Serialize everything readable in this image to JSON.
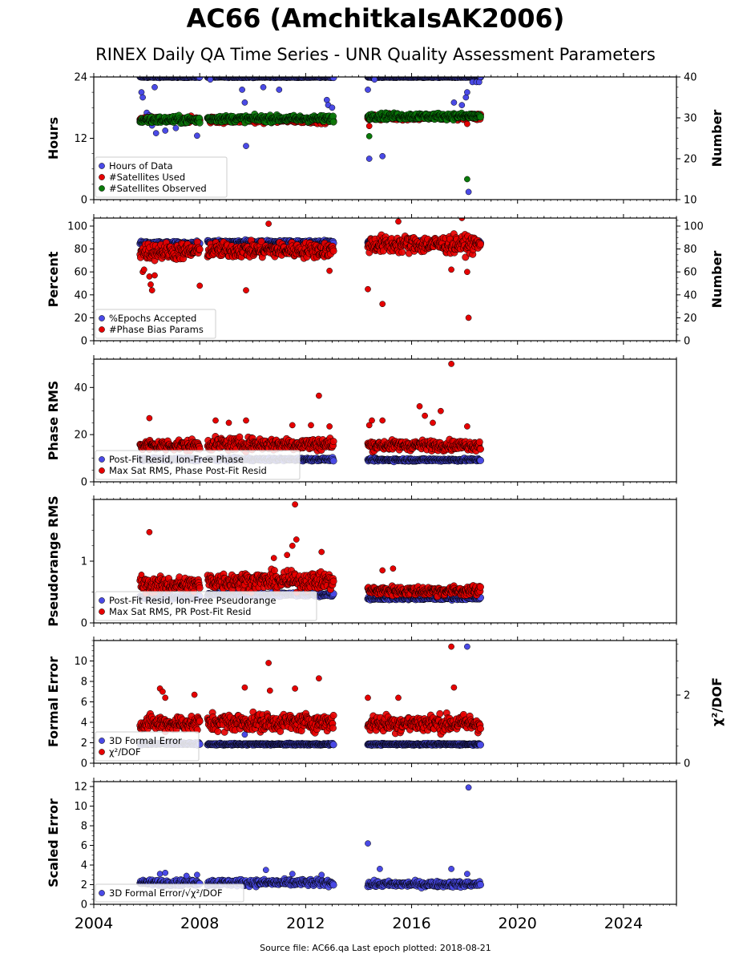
{
  "title": "AC66 (AmchitkaIsAK2006)",
  "subtitle": "RINEX Daily QA Time Series - UNR Quality Assessment Parameters",
  "footer": "Source file: AC66.qa Last epoch plotted: 2018-08-21",
  "colors": {
    "blue": "#4a4ae6",
    "red": "#e60000",
    "green": "#0a7a0a"
  },
  "chart_data": [
    {
      "type": "scatter",
      "ylabel": "Hours",
      "ylabel2": "Number",
      "xlim": [
        2004,
        2026
      ],
      "ylim": [
        0,
        24
      ],
      "ylim2": [
        10,
        40
      ],
      "yticks": [
        0,
        12,
        24
      ],
      "yticks2": [
        10,
        20,
        30,
        40
      ],
      "xticks": [
        "2004",
        "2008",
        "2012",
        "2016",
        "2020",
        "2024"
      ],
      "legend": [
        "Hours of Data",
        "#Satellites Used",
        "#Satellites Observed"
      ],
      "legend_position": "lower-left",
      "series": [
        {
          "name": "Hours of Data",
          "color": "blue",
          "axis": "left",
          "segments": [
            [
              2005.75,
              2008.0,
              24,
              0.1
            ],
            [
              2008.3,
              2013.05,
              24,
              0.1
            ],
            [
              2014.35,
              2018.6,
              24,
              0.1
            ]
          ],
          "outliers": [
            [
              2005.8,
              21
            ],
            [
              2005.85,
              20
            ],
            [
              2006.0,
              17
            ],
            [
              2006.1,
              16.5
            ],
            [
              2006.2,
              14.5
            ],
            [
              2006.3,
              22
            ],
            [
              2006.35,
              13
            ],
            [
              2006.7,
              13.5
            ],
            [
              2007.1,
              14
            ],
            [
              2007.9,
              12.5
            ],
            [
              2008.4,
              23.5
            ],
            [
              2009.6,
              21.5
            ],
            [
              2009.7,
              19
            ],
            [
              2009.75,
              10.5
            ],
            [
              2010.4,
              22
            ],
            [
              2011.0,
              21.5
            ],
            [
              2012.8,
              19.5
            ],
            [
              2012.85,
              18.5
            ],
            [
              2013.0,
              18
            ],
            [
              2014.35,
              21.5
            ],
            [
              2014.4,
              8
            ],
            [
              2014.6,
              23.5
            ],
            [
              2014.9,
              8.5
            ],
            [
              2017.6,
              19
            ],
            [
              2017.9,
              18.5
            ],
            [
              2018.05,
              20
            ],
            [
              2018.1,
              21
            ],
            [
              2018.15,
              1.5
            ],
            [
              2018.3,
              23
            ],
            [
              2018.45,
              23
            ],
            [
              2018.55,
              23
            ],
            [
              2018.6,
              24
            ]
          ]
        },
        {
          "name": "#Satellites Used",
          "color": "red",
          "axis": "right",
          "segments": [
            [
              2005.75,
              2008.0,
              29.5,
              0.8
            ],
            [
              2008.3,
              2013.05,
              29.5,
              0.8
            ],
            [
              2014.35,
              2018.6,
              30.2,
              0.8
            ]
          ],
          "outliers": [
            [
              2014.4,
              28
            ],
            [
              2018.1,
              28.5
            ]
          ]
        },
        {
          "name": "#Satellites Observed",
          "color": "green",
          "axis": "right",
          "segments": [
            [
              2005.75,
              2008.0,
              29.5,
              0.9
            ],
            [
              2008.3,
              2013.05,
              29.8,
              0.8
            ],
            [
              2014.35,
              2018.6,
              30.4,
              0.8
            ]
          ],
          "outliers": [
            [
              2014.4,
              25.5
            ],
            [
              2018.1,
              15
            ]
          ]
        }
      ]
    },
    {
      "type": "scatter",
      "ylabel": "Percent",
      "ylabel2": "Number",
      "xlim": [
        2004,
        2026
      ],
      "ylim": [
        0,
        107
      ],
      "ylim2": [
        0,
        107
      ],
      "yticks": [
        0,
        20,
        40,
        60,
        80,
        100
      ],
      "yticks2": [
        0,
        20,
        40,
        60,
        80,
        100
      ],
      "xticks": [
        "2004",
        "2008",
        "2012",
        "2016",
        "2020",
        "2024"
      ],
      "legend": [
        "%Epochs Accepted",
        "#Phase Bias Params"
      ],
      "legend_position": "lower-left",
      "series": [
        {
          "name": "%Epochs Accepted",
          "color": "blue",
          "axis": "left",
          "segments": [
            [
              2005.75,
              2008.0,
              85,
              1.5
            ],
            [
              2008.3,
              2013.05,
              86,
              1.5
            ],
            [
              2014.35,
              2018.6,
              86,
              1.5
            ]
          ],
          "outliers": []
        },
        {
          "name": "#Phase Bias Params",
          "color": "red",
          "axis": "right",
          "segments": [
            [
              2005.75,
              2008.0,
              78,
              8
            ],
            [
              2008.3,
              2013.05,
              79,
              7
            ],
            [
              2014.35,
              2018.6,
              84,
              8
            ]
          ],
          "outliers": [
            [
              2005.85,
              60
            ],
            [
              2005.9,
              62
            ],
            [
              2006.1,
              56
            ],
            [
              2006.15,
              49
            ],
            [
              2006.2,
              44
            ],
            [
              2006.3,
              57
            ],
            [
              2008.0,
              48
            ],
            [
              2009.75,
              44
            ],
            [
              2010.6,
              102
            ],
            [
              2012.9,
              61
            ],
            [
              2014.35,
              45
            ],
            [
              2014.9,
              32
            ],
            [
              2015.5,
              104
            ],
            [
              2017.5,
              62
            ],
            [
              2017.9,
              107
            ],
            [
              2018.1,
              60
            ],
            [
              2018.15,
              20
            ]
          ]
        }
      ]
    },
    {
      "type": "scatter",
      "ylabel": "Phase RMS",
      "xlim": [
        2004,
        2026
      ],
      "ylim": [
        0,
        52
      ],
      "yticks": [
        0,
        20,
        40
      ],
      "xticks": [
        "2004",
        "2008",
        "2012",
        "2016",
        "2020",
        "2024"
      ],
      "legend": [
        "Post-Fit Resid, Ion-Free Phase",
        "Max Sat RMS, Phase Post-Fit Resid"
      ],
      "legend_position": "lower-left",
      "series": [
        {
          "name": "Post-Fit Resid, Ion-Free Phase",
          "color": "blue",
          "axis": "left",
          "segments": [
            [
              2005.75,
              2008.0,
              9.5,
              0.6
            ],
            [
              2008.3,
              2013.05,
              9.5,
              0.6
            ],
            [
              2014.35,
              2018.6,
              9.3,
              0.6
            ]
          ],
          "outliers": []
        },
        {
          "name": "Max Sat RMS, Phase Post-Fit Resid",
          "color": "red",
          "axis": "left",
          "segments": [
            [
              2005.75,
              2008.0,
              15.5,
              2.5
            ],
            [
              2008.3,
              2013.05,
              16,
              2.8
            ],
            [
              2014.35,
              2018.6,
              15.5,
              2.2
            ]
          ],
          "outliers": [
            [
              2006.1,
              27
            ],
            [
              2008.6,
              26
            ],
            [
              2009.1,
              25
            ],
            [
              2009.75,
              26
            ],
            [
              2011.5,
              24
            ],
            [
              2012.2,
              24
            ],
            [
              2012.5,
              36.5
            ],
            [
              2012.9,
              23.5
            ],
            [
              2014.4,
              24
            ],
            [
              2014.5,
              26
            ],
            [
              2014.9,
              26
            ],
            [
              2016.3,
              32
            ],
            [
              2016.5,
              28
            ],
            [
              2016.8,
              25
            ],
            [
              2017.1,
              30
            ],
            [
              2017.5,
              50
            ],
            [
              2018.1,
              23.5
            ]
          ]
        }
      ]
    },
    {
      "type": "scatter",
      "ylabel": "Pseudorange RMS",
      "xlim": [
        2004,
        2026
      ],
      "ylim": [
        0,
        2.0
      ],
      "yticks": [
        0,
        1
      ],
      "xticks": [
        "2004",
        "2008",
        "2012",
        "2016",
        "2020",
        "2024"
      ],
      "legend": [
        "Post-Fit Resid, Ion-Free Pseudorange",
        "Max Sat RMS, PR Post-Fit Resid"
      ],
      "legend_position": "lower-left",
      "series": [
        {
          "name": "Post-Fit Resid, Ion-Free Pseudorange",
          "color": "blue",
          "axis": "left",
          "segments": [
            [
              2005.75,
              2008.0,
              0.42,
              0.03
            ],
            [
              2008.3,
              2013.05,
              0.46,
              0.03
            ],
            [
              2014.35,
              2018.6,
              0.4,
              0.025
            ]
          ],
          "outliers": []
        },
        {
          "name": "Max Sat RMS, PR Post-Fit Resid",
          "color": "red",
          "axis": "left",
          "segments": [
            [
              2005.75,
              2008.0,
              0.62,
              0.13
            ],
            [
              2008.3,
              2013.05,
              0.68,
              0.15
            ],
            [
              2014.35,
              2018.6,
              0.52,
              0.08
            ]
          ],
          "outliers": [
            [
              2005.8,
              0.78
            ],
            [
              2006.1,
              1.47
            ],
            [
              2010.8,
              1.05
            ],
            [
              2011.3,
              1.1
            ],
            [
              2011.5,
              1.25
            ],
            [
              2011.6,
              1.92
            ],
            [
              2011.65,
              1.35
            ],
            [
              2012.6,
              1.15
            ],
            [
              2014.9,
              0.85
            ],
            [
              2015.3,
              0.88
            ]
          ]
        }
      ]
    },
    {
      "type": "scatter",
      "ylabel": "Formal Error",
      "ylabel2": "χ²/DOF",
      "xlim": [
        2004,
        2026
      ],
      "ylim": [
        0,
        12
      ],
      "ylim2": [
        0,
        3.6
      ],
      "yticks": [
        0,
        2,
        4,
        6,
        8,
        10
      ],
      "yticks2": [
        0,
        2
      ],
      "xticks": [
        "2004",
        "2008",
        "2012",
        "2016",
        "2020",
        "2024"
      ],
      "legend": [
        "3D Formal Error",
        "χ²/DOF"
      ],
      "legend_position": "lower-left",
      "series": [
        {
          "name": "3D Formal Error",
          "color": "blue",
          "axis": "left",
          "segments": [
            [
              2005.75,
              2008.0,
              1.9,
              0.1
            ],
            [
              2008.3,
              2013.05,
              1.85,
              0.08
            ],
            [
              2014.35,
              2018.6,
              1.85,
              0.08
            ]
          ],
          "outliers": [
            [
              2009.7,
              2.8
            ],
            [
              2018.1,
              11.4
            ]
          ]
        },
        {
          "name": "χ²/DOF",
          "color": "red",
          "axis": "left",
          "segments": [
            [
              2005.75,
              2008.0,
              3.9,
              0.8
            ],
            [
              2008.3,
              2013.05,
              4.0,
              0.9
            ],
            [
              2014.35,
              2018.6,
              3.9,
              0.9
            ]
          ],
          "outliers": [
            [
              2006.5,
              7.3
            ],
            [
              2006.6,
              7.0
            ],
            [
              2006.7,
              6.4
            ],
            [
              2007.8,
              6.7
            ],
            [
              2009.7,
              7.4
            ],
            [
              2010.6,
              9.8
            ],
            [
              2010.65,
              7.1
            ],
            [
              2011.6,
              7.3
            ],
            [
              2012.5,
              8.3
            ],
            [
              2014.35,
              6.4
            ],
            [
              2015.5,
              6.4
            ],
            [
              2017.5,
              11.4
            ],
            [
              2017.6,
              7.4
            ]
          ]
        }
      ]
    },
    {
      "type": "scatter",
      "ylabel": "Scaled Error",
      "xlim": [
        2004,
        2026
      ],
      "ylim": [
        0,
        12.5
      ],
      "yticks": [
        0,
        2,
        4,
        6,
        8,
        10,
        12
      ],
      "xticks": [
        "2004",
        "2008",
        "2012",
        "2016",
        "2020",
        "2024"
      ],
      "legend": [
        "3D Formal Error/√χ²/DOF"
      ],
      "legend_position": "lower-left",
      "series": [
        {
          "name": "3D Formal Error/√χ²/DOF",
          "color": "blue",
          "axis": "left",
          "segments": [
            [
              2005.75,
              2008.0,
              2.2,
              0.3
            ],
            [
              2008.3,
              2013.05,
              2.2,
              0.35
            ],
            [
              2014.35,
              2018.6,
              2.05,
              0.3
            ]
          ],
          "outliers": [
            [
              2006.5,
              3.1
            ],
            [
              2006.7,
              3.2
            ],
            [
              2007.5,
              2.9
            ],
            [
              2007.9,
              3.0
            ],
            [
              2010.5,
              3.5
            ],
            [
              2011.5,
              3.1
            ],
            [
              2012.6,
              3.0
            ],
            [
              2014.35,
              6.2
            ],
            [
              2014.8,
              3.6
            ],
            [
              2017.5,
              3.6
            ],
            [
              2018.1,
              3.1
            ],
            [
              2018.15,
              11.9
            ]
          ]
        }
      ]
    }
  ]
}
